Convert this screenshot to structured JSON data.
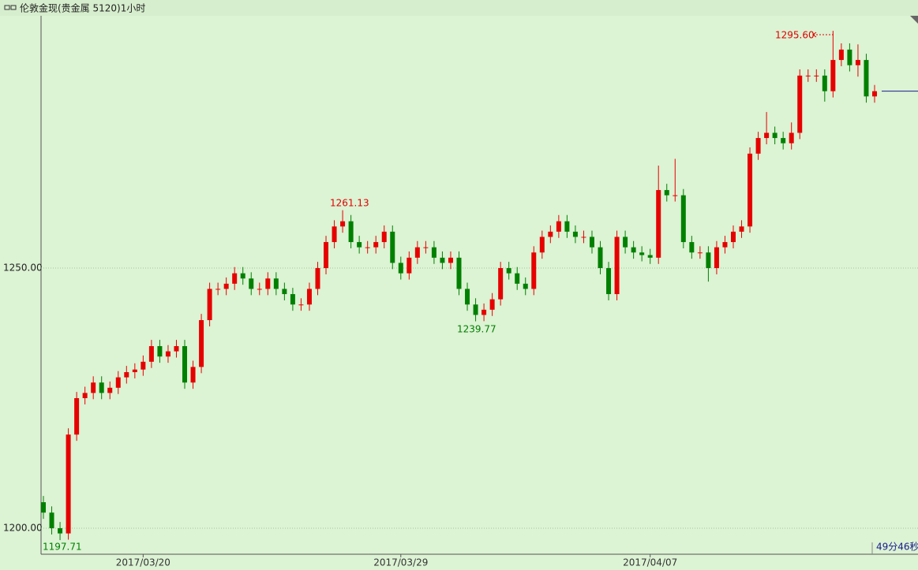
{
  "chart_data": {
    "type": "candlestick",
    "title": "伦敦金现(贵金属 5120)1小时",
    "categories": [
      null,
      null,
      null,
      null,
      null,
      null,
      null,
      null,
      null,
      null,
      null,
      null,
      "2017/03/20",
      null,
      null,
      null,
      null,
      null,
      null,
      null,
      null,
      null,
      null,
      null,
      null,
      null,
      null,
      null,
      null,
      null,
      null,
      null,
      null,
      null,
      null,
      null,
      null,
      null,
      null,
      null,
      null,
      null,
      null,
      "2017/03/29",
      null,
      null,
      null,
      null,
      null,
      null,
      null,
      null,
      null,
      null,
      null,
      null,
      null,
      null,
      null,
      null,
      null,
      null,
      null,
      null,
      null,
      null,
      null,
      null,
      null,
      null,
      null,
      null,
      null,
      "2017/04/07",
      null,
      null,
      null,
      null,
      null,
      null,
      null,
      null,
      null,
      null,
      null,
      null,
      null,
      null,
      null,
      null,
      null,
      null,
      null,
      null,
      null,
      null,
      null,
      null,
      null,
      null,
      null
    ],
    "open": [
      1205,
      1203,
      1200,
      1199,
      1218,
      1225,
      1226,
      1228,
      1226,
      1227,
      1229,
      1230,
      1230.5,
      1232,
      1235,
      1233,
      1234,
      1235,
      1228,
      1231,
      1240,
      1246,
      1246,
      1247,
      1249,
      1248,
      1246,
      1246,
      1248,
      1246,
      1245,
      1243,
      1243,
      1246,
      1250,
      1255,
      1258,
      1259,
      1255,
      1254,
      1254,
      1255,
      1257,
      1251,
      1249,
      1252,
      1254,
      1254,
      1252,
      1251,
      1252,
      1246,
      1243,
      1241,
      1242,
      1244,
      1250,
      1249,
      1247,
      1246,
      1253,
      1256,
      1257,
      1259,
      1257,
      1256,
      1256,
      1254,
      1250,
      1245,
      1256,
      1254,
      1253,
      1252.5,
      1252,
      1265,
      1264,
      1264,
      1255,
      1253,
      1253,
      1250,
      1254,
      1255,
      1257,
      1258,
      1272,
      1275,
      1276,
      1275,
      1274,
      1276,
      1287,
      1287,
      1287,
      1284,
      1290,
      1292,
      1289,
      1290,
      1283
    ],
    "high": [
      1206.2,
      1204.2,
      1201.2,
      1219.2,
      1226.2,
      1227.2,
      1229.2,
      1229.2,
      1228.2,
      1230.2,
      1231.2,
      1231.7,
      1233.2,
      1236.2,
      1236.2,
      1235.2,
      1236.2,
      1236.2,
      1232.2,
      1241.2,
      1247.2,
      1247.2,
      1248.2,
      1250.2,
      1250.2,
      1249.2,
      1247.2,
      1249.2,
      1249.2,
      1247.2,
      1246.2,
      1244.2,
      1247.2,
      1251.2,
      1256.2,
      1259.2,
      1261.13,
      1260.2,
      1256.2,
      1255.2,
      1256.2,
      1258.2,
      1258.2,
      1252.2,
      1253.2,
      1255.2,
      1255.2,
      1255.2,
      1253.2,
      1253.2,
      1253.2,
      1247.2,
      1244.2,
      1243.2,
      1245.2,
      1251.2,
      1251.2,
      1250.2,
      1248.2,
      1254.2,
      1257.2,
      1258.2,
      1260.2,
      1260.2,
      1258.2,
      1257.2,
      1257.2,
      1255.2,
      1251.2,
      1257.2,
      1257.2,
      1255.2,
      1254.2,
      1253.7,
      1269.7,
      1266.2,
      1271,
      1265.2,
      1256.2,
      1254.2,
      1254.2,
      1255.2,
      1256.2,
      1258.2,
      1259.2,
      1273.2,
      1276.2,
      1280,
      1277.2,
      1276.2,
      1278,
      1288.2,
      1288.2,
      1288.2,
      1288.2,
      1295.6,
      1293.2,
      1293.2,
      1293,
      1291.2,
      1285.2
    ],
    "low": [
      1201.8,
      1198.8,
      1197.71,
      1197.8,
      1216.8,
      1223.8,
      1224.8,
      1224.8,
      1224.8,
      1225.8,
      1227.8,
      1228.8,
      1229.3,
      1230.8,
      1231.8,
      1231.8,
      1232.8,
      1226.8,
      1226.8,
      1229.8,
      1238.8,
      1244.8,
      1244.8,
      1245.8,
      1246.8,
      1244.8,
      1244.8,
      1244.8,
      1244.8,
      1243.8,
      1241.8,
      1241.8,
      1241.8,
      1244.8,
      1248.8,
      1253.8,
      1256.8,
      1253.8,
      1252.8,
      1252.8,
      1252.8,
      1253.8,
      1249.8,
      1247.8,
      1247.8,
      1250.8,
      1252.8,
      1250.8,
      1249.8,
      1249.8,
      1244.8,
      1241.8,
      1239.77,
      1239.8,
      1240.8,
      1242.8,
      1247.8,
      1245.8,
      1244.8,
      1244.8,
      1251.8,
      1254.8,
      1255.8,
      1255.8,
      1254.8,
      1254.8,
      1252.8,
      1248.8,
      1243.8,
      1243.8,
      1252.8,
      1251.8,
      1251.3,
      1250.8,
      1250.8,
      1262.8,
      1262.8,
      1253.8,
      1251.8,
      1251.8,
      1247.4,
      1248.8,
      1252.8,
      1253.8,
      1255.8,
      1256.8,
      1270.8,
      1273.8,
      1273.8,
      1272.8,
      1272.8,
      1274.8,
      1285.8,
      1285.8,
      1282,
      1282.8,
      1288.8,
      1287.8,
      1286.8,
      1281.8,
      1281.8
    ],
    "close": [
      1203,
      1200,
      1199,
      1218,
      1225,
      1226,
      1228,
      1226,
      1227,
      1229,
      1230,
      1230.5,
      1232,
      1235,
      1233,
      1234,
      1235,
      1228,
      1231,
      1240,
      1246,
      1246,
      1247,
      1249,
      1248,
      1246,
      1246,
      1248,
      1246,
      1245,
      1243,
      1243,
      1246,
      1250,
      1255,
      1258,
      1259,
      1255,
      1254,
      1254,
      1255,
      1257,
      1251,
      1249,
      1252,
      1254,
      1254,
      1252,
      1251,
      1252,
      1246,
      1243,
      1241,
      1242,
      1244,
      1250,
      1249,
      1247,
      1246,
      1253,
      1256,
      1257,
      1259,
      1257,
      1256,
      1256,
      1254,
      1250,
      1245,
      1256,
      1254,
      1253,
      1252.5,
      1252,
      1265,
      1264,
      1264,
      1255,
      1253,
      1253,
      1250,
      1254,
      1255,
      1257,
      1258,
      1272,
      1275,
      1276,
      1275,
      1274,
      1276,
      1287,
      1287,
      1287,
      1284,
      1290,
      1292,
      1289,
      1290,
      1283,
      1284
    ],
    "up_color": "#e60000",
    "down_color": "#008000",
    "ylim": [
      1195,
      1298.5
    ],
    "yticks": [
      {
        "value": 1200,
        "label": "1200.00"
      },
      {
        "value": 1250,
        "label": "1250.00"
      }
    ],
    "grid": true,
    "annotations": [
      "1261.13",
      "1239.77",
      "1295.60",
      "1197.71"
    ],
    "countdown": "49分46秒"
  }
}
